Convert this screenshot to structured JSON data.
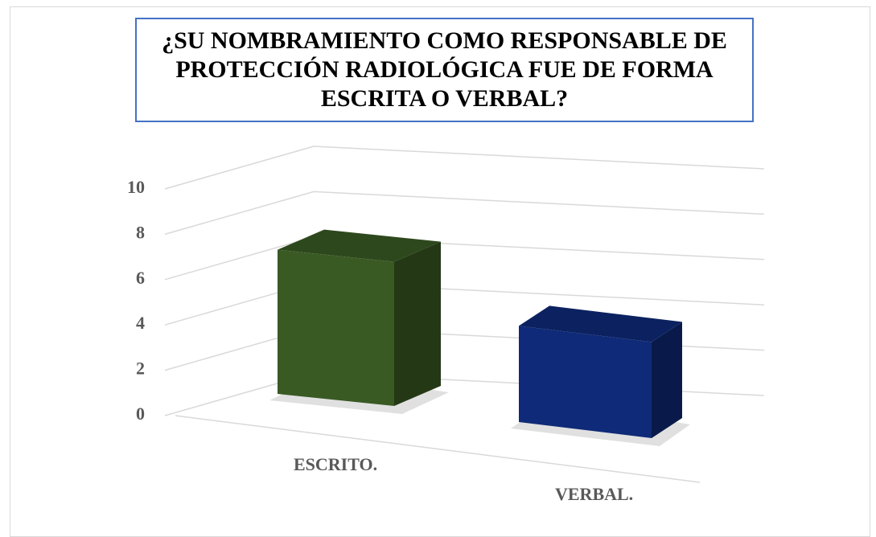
{
  "chart_data": {
    "type": "bar3d",
    "title": "¿SU NOMBRAMIENTO COMO RESPONSABLE DE PROTECCIÓN RADIOLÓGICA FUE DE FORMA ESCRITA O VERBAL?",
    "categories": [
      "ESCRITO.",
      "VERBAL."
    ],
    "values": [
      6,
      4
    ],
    "colors": [
      "#3a5a24",
      "#0f2a78"
    ],
    "ylim": [
      0,
      10
    ],
    "yticks": [
      0,
      2,
      4,
      6,
      8,
      10
    ],
    "grid": true
  }
}
